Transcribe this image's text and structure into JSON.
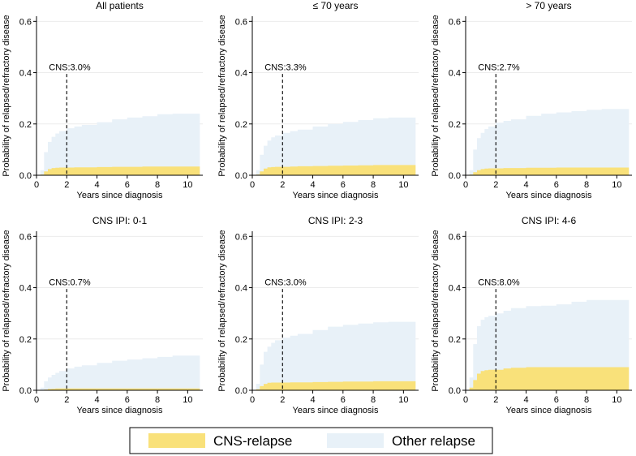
{
  "chart_data": {
    "type": "area",
    "shared": {
      "xlabel": "Years since diagnosis",
      "ylabel": "Probability of relapsed/refractory disease",
      "xlim": [
        0,
        11
      ],
      "ylim": [
        0,
        0.62
      ],
      "xticks": [
        0,
        2,
        4,
        6,
        8,
        10
      ],
      "yticks": [
        0,
        0.2,
        0.4,
        0.6
      ],
      "ytick_labels": [
        "0.0",
        "0.2",
        "0.4",
        "0.6"
      ],
      "marker_year": 2,
      "colors": {
        "cns": "#f9e17a",
        "other": "#e8f1f8",
        "gridline": "#ececec",
        "marker": "#000000"
      }
    },
    "legend": [
      {
        "name": "CNS-relapse",
        "color": "#f9e17a"
      },
      {
        "name": "Other relapse",
        "color": "#e8f1f8"
      }
    ],
    "panels": [
      {
        "title": "All patients",
        "annotation": "CNS:3.0%",
        "x": [
          0,
          0.25,
          0.5,
          0.75,
          1,
          1.25,
          1.5,
          2,
          2.5,
          3,
          4,
          5,
          6,
          7,
          8,
          9,
          10,
          10.8
        ],
        "cns": [
          0,
          0.003,
          0.015,
          0.024,
          0.028,
          0.029,
          0.03,
          0.03,
          0.031,
          0.031,
          0.032,
          0.033,
          0.033,
          0.034,
          0.034,
          0.034,
          0.034,
          0.034
        ],
        "total": [
          0,
          0.02,
          0.09,
          0.13,
          0.15,
          0.163,
          0.172,
          0.183,
          0.19,
          0.196,
          0.207,
          0.218,
          0.225,
          0.23,
          0.238,
          0.24,
          0.24,
          0.24
        ]
      },
      {
        "title": "≤ 70 years",
        "annotation": "CNS:3.3%",
        "x": [
          0,
          0.25,
          0.5,
          0.75,
          1,
          1.25,
          1.5,
          2,
          2.5,
          3,
          4,
          5,
          6,
          7,
          8,
          9,
          10,
          10.8
        ],
        "cns": [
          0,
          0.003,
          0.015,
          0.026,
          0.031,
          0.032,
          0.033,
          0.033,
          0.034,
          0.035,
          0.036,
          0.037,
          0.038,
          0.039,
          0.04,
          0.04,
          0.04,
          0.04
        ],
        "total": [
          0,
          0.02,
          0.08,
          0.115,
          0.135,
          0.148,
          0.155,
          0.165,
          0.172,
          0.178,
          0.19,
          0.2,
          0.208,
          0.215,
          0.222,
          0.225,
          0.225,
          0.225
        ]
      },
      {
        "title": "> 70 years",
        "annotation": "CNS:2.7%",
        "x": [
          0,
          0.25,
          0.5,
          0.75,
          1,
          1.25,
          1.5,
          2,
          2.5,
          3,
          4,
          5,
          6,
          7,
          8,
          9,
          10,
          10.8
        ],
        "cns": [
          0,
          0.003,
          0.012,
          0.02,
          0.024,
          0.026,
          0.027,
          0.027,
          0.028,
          0.028,
          0.029,
          0.029,
          0.03,
          0.03,
          0.03,
          0.03,
          0.03,
          0.03
        ],
        "total": [
          0,
          0.02,
          0.1,
          0.145,
          0.165,
          0.18,
          0.19,
          0.205,
          0.212,
          0.218,
          0.232,
          0.24,
          0.245,
          0.25,
          0.255,
          0.258,
          0.258,
          0.258
        ]
      },
      {
        "title": "CNS IPI: 0-1",
        "annotation": "CNS:0.7%",
        "x": [
          0,
          0.25,
          0.5,
          0.75,
          1,
          1.25,
          1.5,
          2,
          2.5,
          3,
          4,
          5,
          6,
          7,
          8,
          9,
          10,
          10.8
        ],
        "cns": [
          0,
          0.001,
          0.003,
          0.005,
          0.006,
          0.007,
          0.007,
          0.007,
          0.007,
          0.007,
          0.007,
          0.007,
          0.007,
          0.007,
          0.007,
          0.007,
          0.007,
          0.007
        ],
        "total": [
          0,
          0.01,
          0.035,
          0.05,
          0.06,
          0.068,
          0.075,
          0.085,
          0.092,
          0.097,
          0.107,
          0.115,
          0.12,
          0.125,
          0.13,
          0.135,
          0.135,
          0.135
        ]
      },
      {
        "title": "CNS IPI: 2-3",
        "annotation": "CNS:3.0%",
        "x": [
          0,
          0.25,
          0.5,
          0.75,
          1,
          1.25,
          1.5,
          2,
          2.5,
          3,
          4,
          5,
          6,
          7,
          8,
          9,
          10,
          10.8
        ],
        "cns": [
          0,
          0.004,
          0.016,
          0.025,
          0.029,
          0.03,
          0.03,
          0.03,
          0.031,
          0.031,
          0.032,
          0.033,
          0.034,
          0.034,
          0.035,
          0.035,
          0.035,
          0.035
        ],
        "total": [
          0,
          0.025,
          0.1,
          0.15,
          0.17,
          0.185,
          0.195,
          0.205,
          0.213,
          0.22,
          0.235,
          0.248,
          0.255,
          0.26,
          0.265,
          0.267,
          0.267,
          0.267
        ]
      },
      {
        "title": "CNS IPI: 4-6",
        "annotation": "CNS:8.0%",
        "x": [
          0,
          0.25,
          0.5,
          0.75,
          1,
          1.25,
          1.5,
          2,
          2.5,
          3,
          4,
          5,
          6,
          7,
          8,
          9,
          10,
          10.8
        ],
        "cns": [
          0,
          0.01,
          0.04,
          0.065,
          0.075,
          0.078,
          0.08,
          0.08,
          0.085,
          0.088,
          0.09,
          0.09,
          0.09,
          0.09,
          0.09,
          0.09,
          0.09,
          0.09
        ],
        "total": [
          0,
          0.05,
          0.18,
          0.25,
          0.275,
          0.285,
          0.29,
          0.3,
          0.31,
          0.32,
          0.328,
          0.33,
          0.335,
          0.345,
          0.352,
          0.352,
          0.352,
          0.352
        ]
      }
    ]
  }
}
